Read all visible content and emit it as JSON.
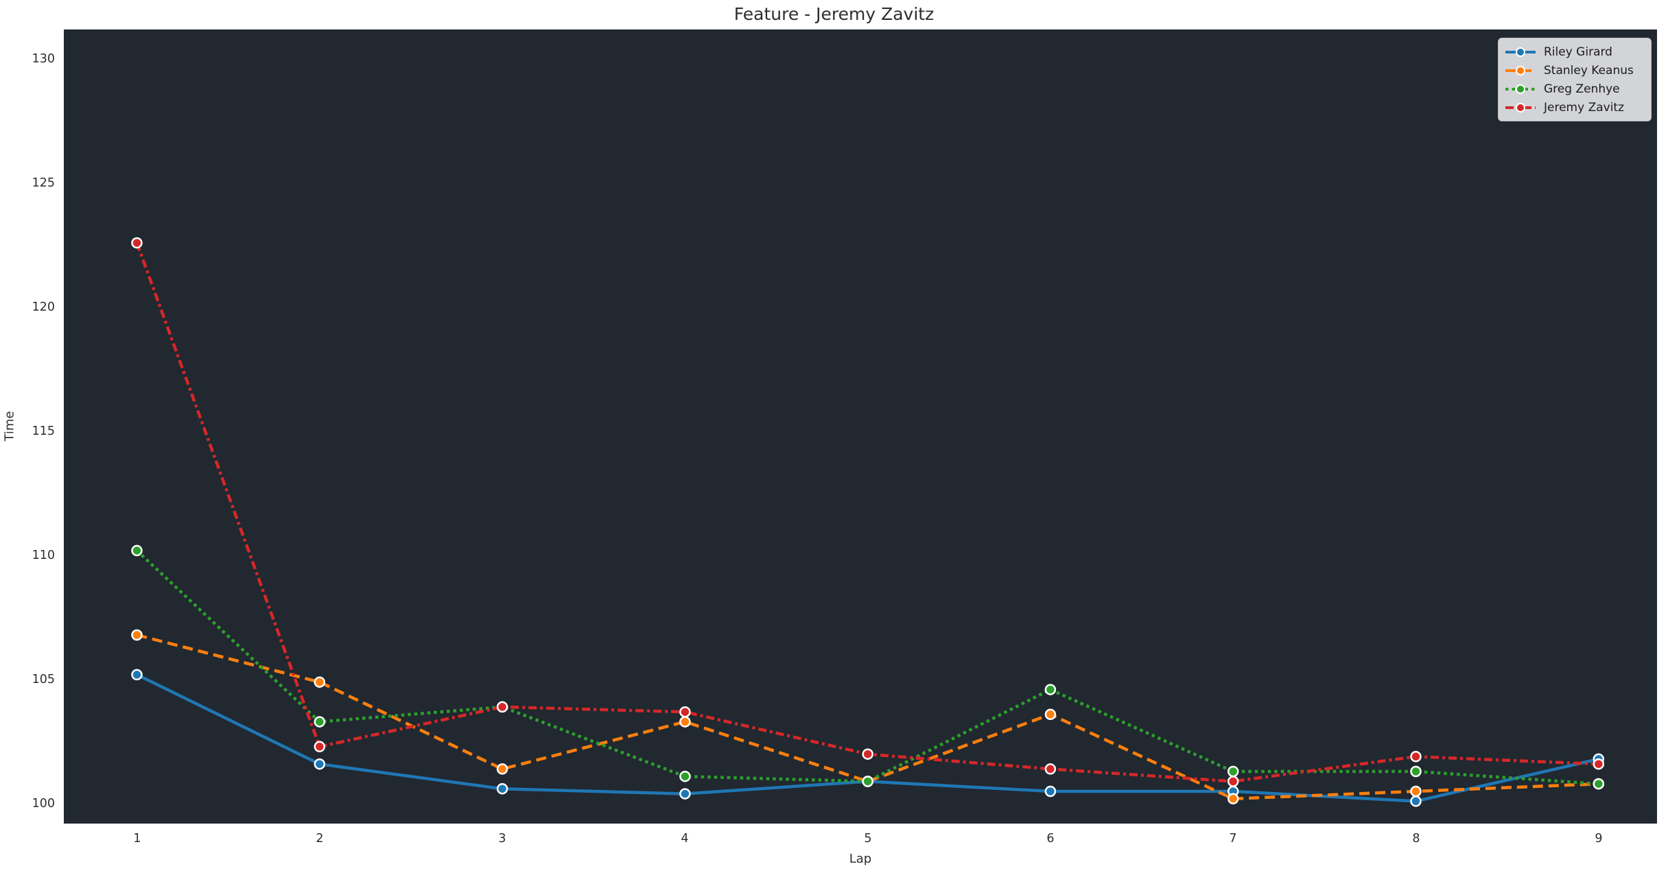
{
  "chart_data": {
    "type": "line",
    "title": "Feature - Jeremy Zavitz",
    "xlabel": "Lap",
    "ylabel": "Time",
    "x": [
      1,
      2,
      3,
      4,
      5,
      6,
      7,
      8,
      9
    ],
    "xticks": [
      1,
      2,
      3,
      4,
      5,
      6,
      7,
      8,
      9
    ],
    "yticks": [
      100,
      105,
      110,
      115,
      120,
      125,
      130
    ],
    "xlim": [
      0.6,
      9.32
    ],
    "ylim": [
      99.2,
      131.2
    ],
    "grid": false,
    "legend_position": "upper right",
    "plot_background": "#212830",
    "figure_background": "#ffffff",
    "marker": "circle",
    "marker_edge_color": "#ffffff",
    "series": [
      {
        "name": "Riley Girard",
        "color": "#1f77b4",
        "style": "solid",
        "values": [
          105.2,
          101.6,
          100.6,
          100.4,
          100.9,
          100.5,
          100.5,
          100.1,
          101.8
        ]
      },
      {
        "name": "Stanley Keanus",
        "color": "#ff7f0e",
        "style": "dashed",
        "values": [
          106.8,
          104.9,
          101.4,
          103.3,
          100.9,
          103.6,
          100.2,
          100.5,
          100.8
        ]
      },
      {
        "name": "Greg Zenhye",
        "color": "#2ca02c",
        "style": "dotted",
        "values": [
          110.2,
          103.3,
          103.9,
          101.1,
          100.9,
          104.6,
          101.3,
          101.3,
          100.8
        ]
      },
      {
        "name": "Jeremy Zavitz",
        "color": "#d62728",
        "style": "dashdot",
        "values": [
          122.6,
          102.3,
          103.9,
          103.7,
          102.0,
          101.4,
          100.9,
          101.9,
          101.6
        ]
      }
    ]
  }
}
